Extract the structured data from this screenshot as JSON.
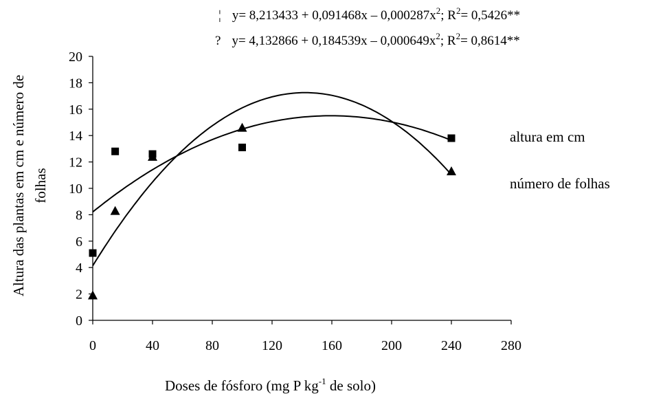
{
  "chart_data": {
    "type": "scatter",
    "xlabel": {
      "main": "Doses de fósforo (mg P kg",
      "sup": "-1",
      "tail": " de solo)"
    },
    "ylabel": [
      "Altura das plantas em cm e número de",
      "folhas"
    ],
    "x_ticks": [
      "0",
      "40",
      "80",
      "120",
      "160",
      "200",
      "240",
      "280"
    ],
    "y_ticks": [
      "0",
      "2",
      "4",
      "6",
      "8",
      "10",
      "12",
      "14",
      "16",
      "18",
      "20"
    ],
    "xlim": [
      0,
      280
    ],
    "ylim": [
      0,
      20
    ],
    "equations": [
      {
        "marker": "¦",
        "lhs": "y= 8,213433 + 0,091468x – 0,000287x",
        "exp": "2",
        "mid": "; R",
        "r_exp": "2",
        "rhs": "= 0,5426**"
      },
      {
        "marker": "?",
        "lhs": "y= 4,132866 + 0,184539x – 0,000649x",
        "exp": "2",
        "mid": "; R",
        "r_exp": "2",
        "rhs": "= 0,8614**"
      }
    ],
    "series": [
      {
        "name": "altura em cm",
        "marker": "square",
        "x": [
          0,
          15,
          40,
          100,
          240
        ],
        "y": [
          5.1,
          12.8,
          12.6,
          13.1,
          13.8
        ],
        "fit": [
          8.213433,
          0.091468,
          -0.000287
        ]
      },
      {
        "name": "número de folhas",
        "marker": "triangle",
        "x": [
          0,
          15,
          40,
          100,
          240
        ],
        "y": [
          1.9,
          8.3,
          12.4,
          14.6,
          11.3
        ],
        "fit": [
          4.132866,
          0.184539,
          -0.000649
        ]
      }
    ]
  }
}
